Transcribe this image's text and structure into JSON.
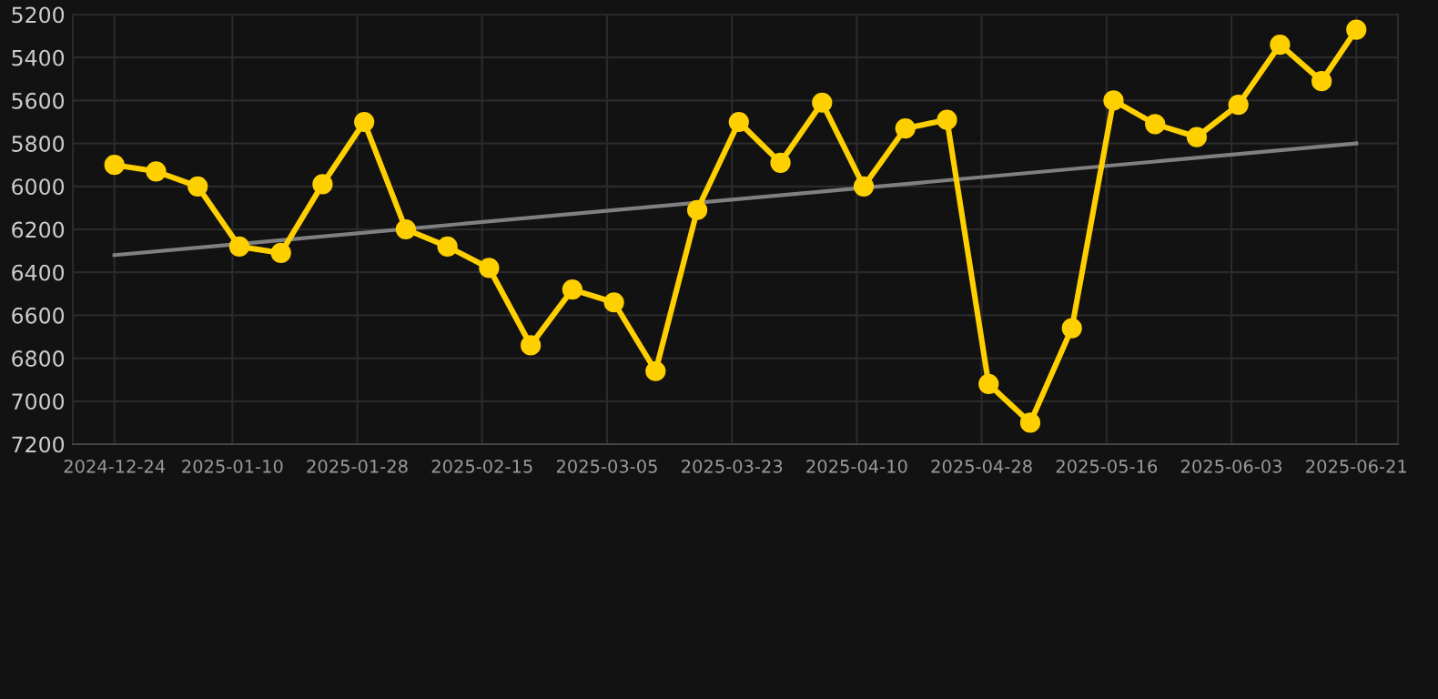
{
  "chart_data": {
    "type": "line",
    "x": [
      "2024-12-24",
      "2024-12-30",
      "2025-01-05",
      "2025-01-11",
      "2025-01-17",
      "2025-01-23",
      "2025-01-29",
      "2025-02-04",
      "2025-02-10",
      "2025-02-16",
      "2025-02-22",
      "2025-02-28",
      "2025-03-06",
      "2025-03-12",
      "2025-03-18",
      "2025-03-24",
      "2025-03-30",
      "2025-04-05",
      "2025-04-11",
      "2025-04-17",
      "2025-04-23",
      "2025-04-29",
      "2025-05-05",
      "2025-05-11",
      "2025-05-17",
      "2025-05-23",
      "2025-05-29",
      "2025-06-04",
      "2025-06-10",
      "2025-06-16",
      "2025-06-21"
    ],
    "series": [
      {
        "color": "#ffd000",
        "marker": "circle",
        "values": [
          5900,
          5930,
          6000,
          6280,
          6310,
          5990,
          5700,
          6200,
          6280,
          6380,
          6740,
          6480,
          6540,
          6860,
          6110,
          5700,
          5890,
          5610,
          6000,
          5730,
          5690,
          6920,
          7100,
          6660,
          5600,
          5710,
          5770,
          5620,
          5340,
          5510,
          5270
        ]
      },
      {
        "color": "#808080",
        "marker": "none",
        "x": [
          "2024-12-24",
          "2025-06-21"
        ],
        "values": [
          6320,
          5800
        ]
      }
    ],
    "xlim": [
      "2024-12-18",
      "2025-06-27"
    ],
    "xticks": [
      "2024-12-24",
      "2025-01-10",
      "2025-01-28",
      "2025-02-15",
      "2025-03-05",
      "2025-03-23",
      "2025-04-10",
      "2025-04-28",
      "2025-05-16",
      "2025-06-03",
      "2025-06-21"
    ],
    "ylim": [
      7200,
      5200
    ],
    "yticks": [
      5200,
      5400,
      5600,
      5800,
      6000,
      6200,
      6400,
      6600,
      6800,
      7000,
      7200
    ],
    "grid": true,
    "line_style": "solid"
  }
}
